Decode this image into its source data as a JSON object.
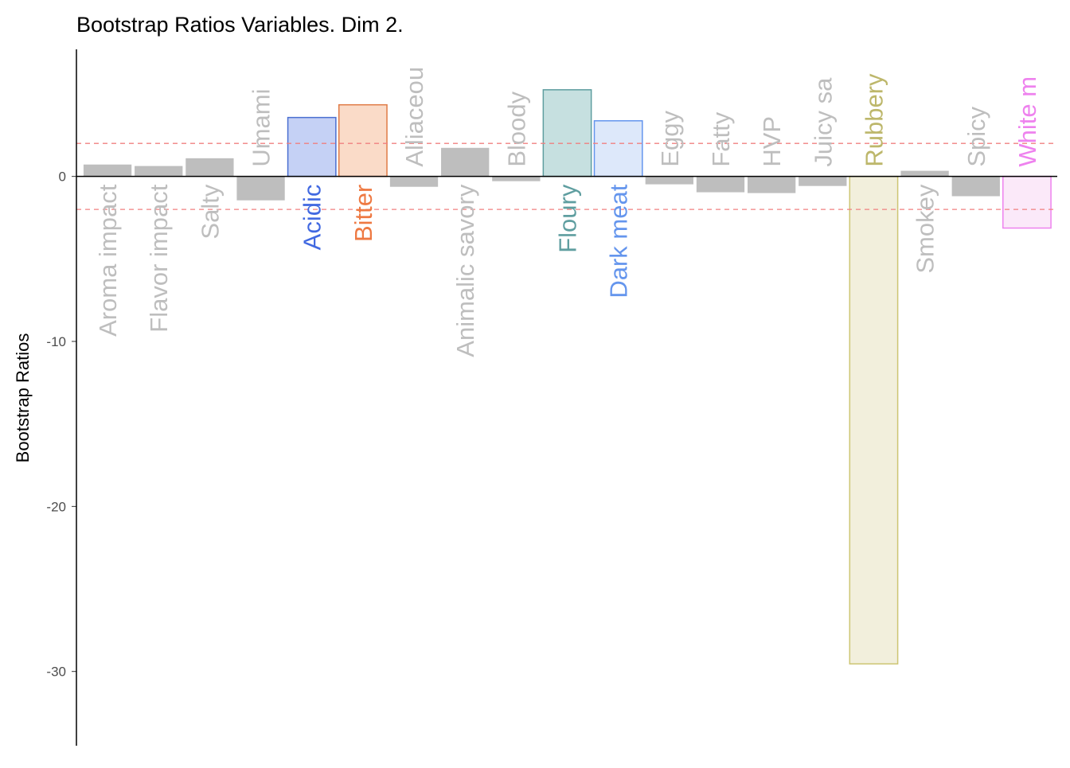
{
  "chart_data": {
    "type": "bar",
    "title": "Bootstrap Ratios Variables. Dim 2.",
    "y_label": "Bootstrap Ratios",
    "categories": [
      "Aroma impact",
      "Flavor impact",
      "Salty",
      "Umami",
      "Acidic",
      "Bitter",
      "Alliaceou",
      "Animalic savory",
      "Bloody",
      "Floury",
      "Dark meat",
      "Eggy",
      "Fatty",
      "HVP",
      "Juicy sa",
      "Rubbery",
      "Smokey",
      "Spicy",
      "White m"
    ],
    "values": [
      0.72,
      0.63,
      1.1,
      -1.45,
      3.57,
      4.34,
      -0.63,
      1.73,
      -0.29,
      5.25,
      3.37,
      -0.48,
      -0.96,
      -1.01,
      -0.58,
      -29.54,
      0.34,
      -1.2,
      -3.13
    ],
    "fills": [
      "#bebebe",
      "#bebebe",
      "#bebebe",
      "#bebebe",
      "#c5d1f5",
      "#fadbc8",
      "#bebebe",
      "#bebebe",
      "#bebebe",
      "#c6e0e0",
      "#dde8fa",
      "#bebebe",
      "#bebebe",
      "#bebebe",
      "#bebebe",
      "#f2efdc",
      "#bebebe",
      "#bebebe",
      "#fbe9f9"
    ],
    "strokes": [
      null,
      null,
      null,
      null,
      "#4a6fd1",
      "#e07b46",
      null,
      null,
      null,
      "#5f9ea0",
      "#6495ed",
      null,
      null,
      null,
      null,
      "#cdc673",
      null,
      null,
      "#ee82ee"
    ],
    "label_colors": [
      "#bebebe",
      "#bebebe",
      "#bebebe",
      "#bebebe",
      "#4169e1",
      "#ee7942",
      "#bebebe",
      "#bebebe",
      "#bebebe",
      "#5f9ea0",
      "#6495ed",
      "#bebebe",
      "#bebebe",
      "#bebebe",
      "#bebebe",
      "#bdb76b",
      "#bebebe",
      "#bebebe",
      "#ee82ee"
    ],
    "reference_lines": [
      2,
      -2
    ],
    "reference_color": "#f08080",
    "ylim": [
      -34.5,
      7.7
    ],
    "yticks": [
      0,
      -10,
      -20,
      -30
    ]
  }
}
